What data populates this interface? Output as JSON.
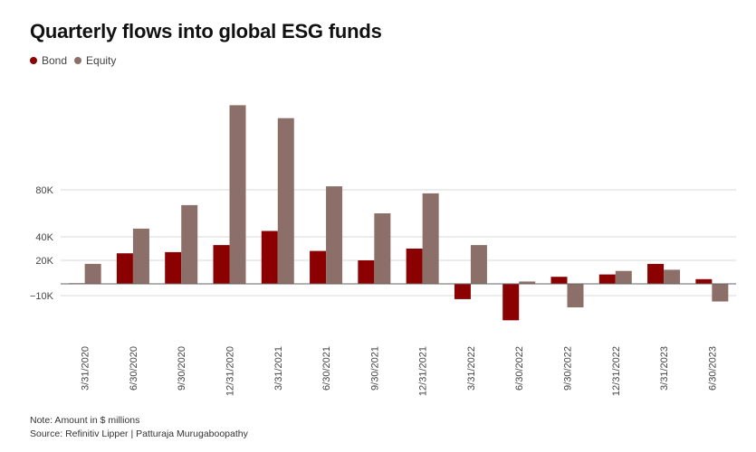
{
  "title": "Quarterly flows into global ESG funds",
  "legend": [
    {
      "label": "Bond",
      "color": "#8b0000"
    },
    {
      "label": "Equity",
      "color": "#8c6f68"
    }
  ],
  "chart_data": {
    "type": "bar",
    "categories": [
      "3/31/2020",
      "6/30/2020",
      "9/30/2020",
      "12/31/2020",
      "3/31/2021",
      "6/30/2021",
      "9/30/2021",
      "12/31/2021",
      "3/31/2022",
      "6/30/2022",
      "9/30/2022",
      "12/31/2022",
      "3/31/2023",
      "6/30/2023"
    ],
    "series": [
      {
        "name": "Bond",
        "color": "#8b0000",
        "values": [
          0.5,
          26,
          27,
          33,
          45,
          28,
          20,
          30,
          -13,
          -31,
          6,
          8,
          17,
          4
        ]
      },
      {
        "name": "Equity",
        "color": "#8c6f68",
        "values": [
          17,
          47,
          67,
          152,
          141,
          83,
          60,
          77,
          33,
          2,
          -20,
          11,
          12,
          -15
        ]
      }
    ],
    "y_ticks": [
      {
        "value": 80000,
        "label": "80K"
      },
      {
        "value": 40000,
        "label": "40K"
      },
      {
        "value": 20000,
        "label": "20K"
      },
      {
        "value": -10000,
        "label": "−10K"
      }
    ],
    "ylim": [
      -35,
      155
    ],
    "grid": true,
    "legend_position": "top-left"
  },
  "notes": {
    "note": "Note: Amount in $ millions",
    "source": "Source: Refinitiv Lipper | Patturaja Murugaboopathy"
  }
}
